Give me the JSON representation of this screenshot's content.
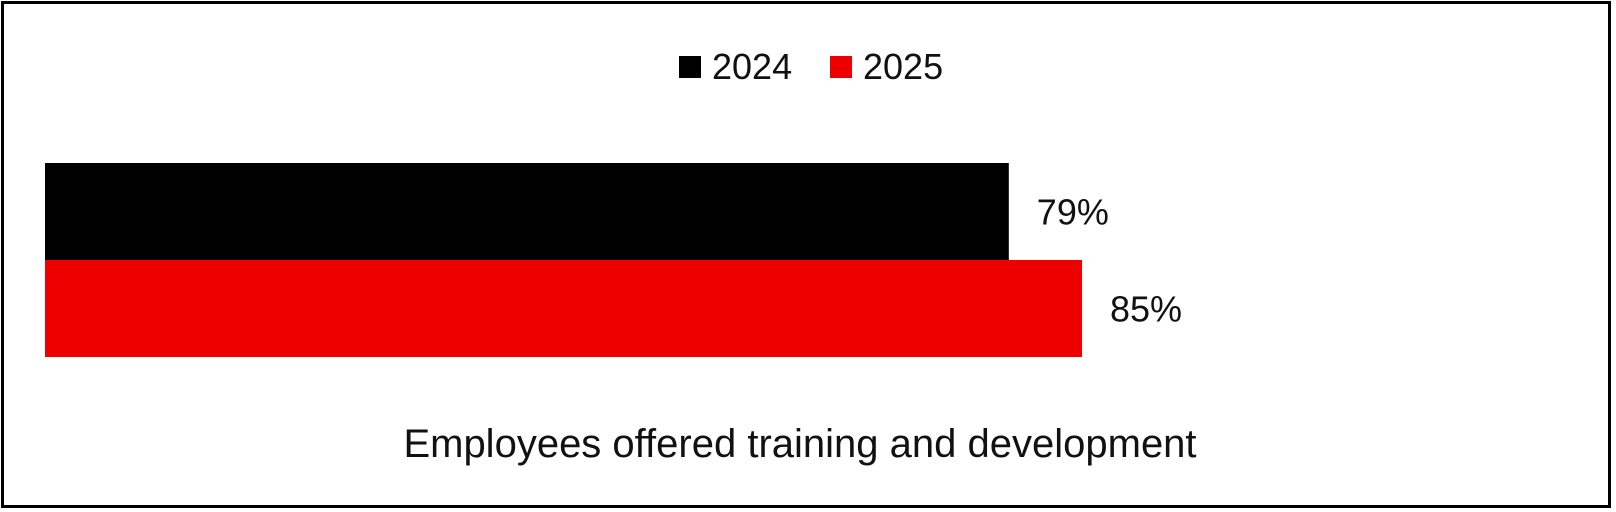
{
  "chart_data": {
    "type": "bar",
    "orientation": "horizontal",
    "categories": [
      "Employees offered training and development"
    ],
    "series": [
      {
        "name": "2024",
        "color": "#000000",
        "values": [
          79
        ],
        "labels": [
          "79%"
        ]
      },
      {
        "name": "2025",
        "color": "#ee0000",
        "values": [
          85
        ],
        "labels": [
          "85%"
        ]
      }
    ],
    "xlim": [
      0,
      100
    ],
    "unit": "%",
    "legend_position": "top-center",
    "grid": false,
    "axes_visible": false
  }
}
